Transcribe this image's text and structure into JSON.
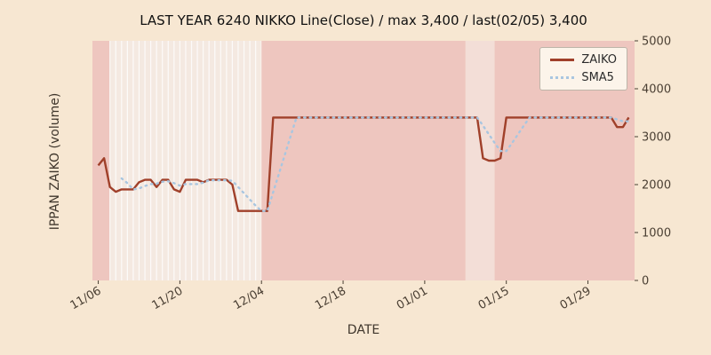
{
  "chart_data": {
    "type": "line",
    "title": "LAST YEAR 6240 NIKKO Line(Close) / max 3,400 / last(02/05) 3,400",
    "xlabel": "DATE",
    "ylabel": "IPPAN ZAIKO (volume)",
    "ylim": [
      0,
      5000
    ],
    "yticks": [
      0,
      1000,
      2000,
      3000,
      4000,
      5000
    ],
    "xtick_labels": [
      "11/06",
      "11/20",
      "12/04",
      "12/18",
      "01/01",
      "01/15",
      "01/29"
    ],
    "legend": {
      "position": "upper right",
      "entries": [
        {
          "label": "ZAIKO",
          "color": "#a0402a",
          "style": "solid"
        },
        {
          "label": "SMA5",
          "color": "#a9c6e0",
          "style": "dotted"
        }
      ]
    },
    "dates": [
      "11/06",
      "11/07",
      "11/08",
      "11/09",
      "11/10",
      "11/11",
      "11/12",
      "11/13",
      "11/14",
      "11/15",
      "11/16",
      "11/17",
      "11/18",
      "11/19",
      "11/20",
      "11/21",
      "11/22",
      "11/23",
      "11/24",
      "11/25",
      "11/26",
      "11/27",
      "11/28",
      "11/29",
      "11/30",
      "12/01",
      "12/02",
      "12/03",
      "12/04",
      "12/05",
      "12/06",
      "12/07",
      "12/08",
      "12/09",
      "12/10",
      "12/11",
      "12/12",
      "12/13",
      "12/14",
      "12/15",
      "12/16",
      "12/17",
      "12/18",
      "12/19",
      "12/20",
      "12/21",
      "12/22",
      "12/23",
      "12/24",
      "12/25",
      "12/26",
      "12/27",
      "12/28",
      "12/29",
      "12/30",
      "12/31",
      "01/01",
      "01/02",
      "01/03",
      "01/04",
      "01/05",
      "01/06",
      "01/07",
      "01/08",
      "01/09",
      "01/10",
      "01/11",
      "01/12",
      "01/13",
      "01/14",
      "01/15",
      "01/16",
      "01/17",
      "01/18",
      "01/19",
      "01/20",
      "01/21",
      "01/22",
      "01/23",
      "01/24",
      "01/25",
      "01/26",
      "01/27",
      "01/28",
      "01/29",
      "01/30",
      "01/31",
      "02/01",
      "02/02",
      "02/03",
      "02/04",
      "02/05"
    ],
    "series": [
      {
        "name": "ZAIKO",
        "values": [
          2400,
          2550,
          1950,
          1850,
          1900,
          1900,
          1900,
          2050,
          2100,
          2100,
          1950,
          2100,
          2100,
          1900,
          1850,
          2100,
          2100,
          2100,
          2050,
          2100,
          2100,
          2100,
          2100,
          2000,
          1450,
          1450,
          1450,
          1450,
          1450,
          1450,
          3400,
          3400,
          3400,
          3400,
          3400,
          3400,
          3400,
          3400,
          3400,
          3400,
          3400,
          3400,
          3400,
          3400,
          3400,
          3400,
          3400,
          3400,
          3400,
          3400,
          3400,
          3400,
          3400,
          3400,
          3400,
          3400,
          3400,
          3400,
          3400,
          3400,
          3400,
          3400,
          3400,
          3400,
          3400,
          3400,
          2550,
          2500,
          2500,
          2550,
          3400,
          3400,
          3400,
          3400,
          3400,
          3400,
          3400,
          3400,
          3400,
          3400,
          3400,
          3400,
          3400,
          3400,
          3400,
          3400,
          3400,
          3400,
          3400,
          3200,
          3200,
          3400
        ]
      },
      {
        "name": "SMA5",
        "derived_from": "ZAIKO",
        "window": 5
      }
    ],
    "bands": [
      {
        "from": "11/06",
        "to": "11/08",
        "color": "band_pink"
      },
      {
        "from": "11/08",
        "to": "12/04",
        "color": "band_cream",
        "stripes": true
      },
      {
        "from": "12/04",
        "to": "01/08",
        "color": "band_pink"
      },
      {
        "from": "01/08",
        "to": "01/13",
        "color": "band_light"
      },
      {
        "from": "01/13",
        "to": "02/05",
        "color": "band_pink"
      }
    ],
    "colors": {
      "figure_bg": "#f7e7d2",
      "band_pink": "#eec6bf",
      "band_cream": "#f4e9e1",
      "band_light": "#f3ded7",
      "stripe": "#ffffff",
      "tick_text": "#4a3f33",
      "zaiko_line": "#a0402a",
      "sma5_line": "#a9c6e0"
    }
  }
}
